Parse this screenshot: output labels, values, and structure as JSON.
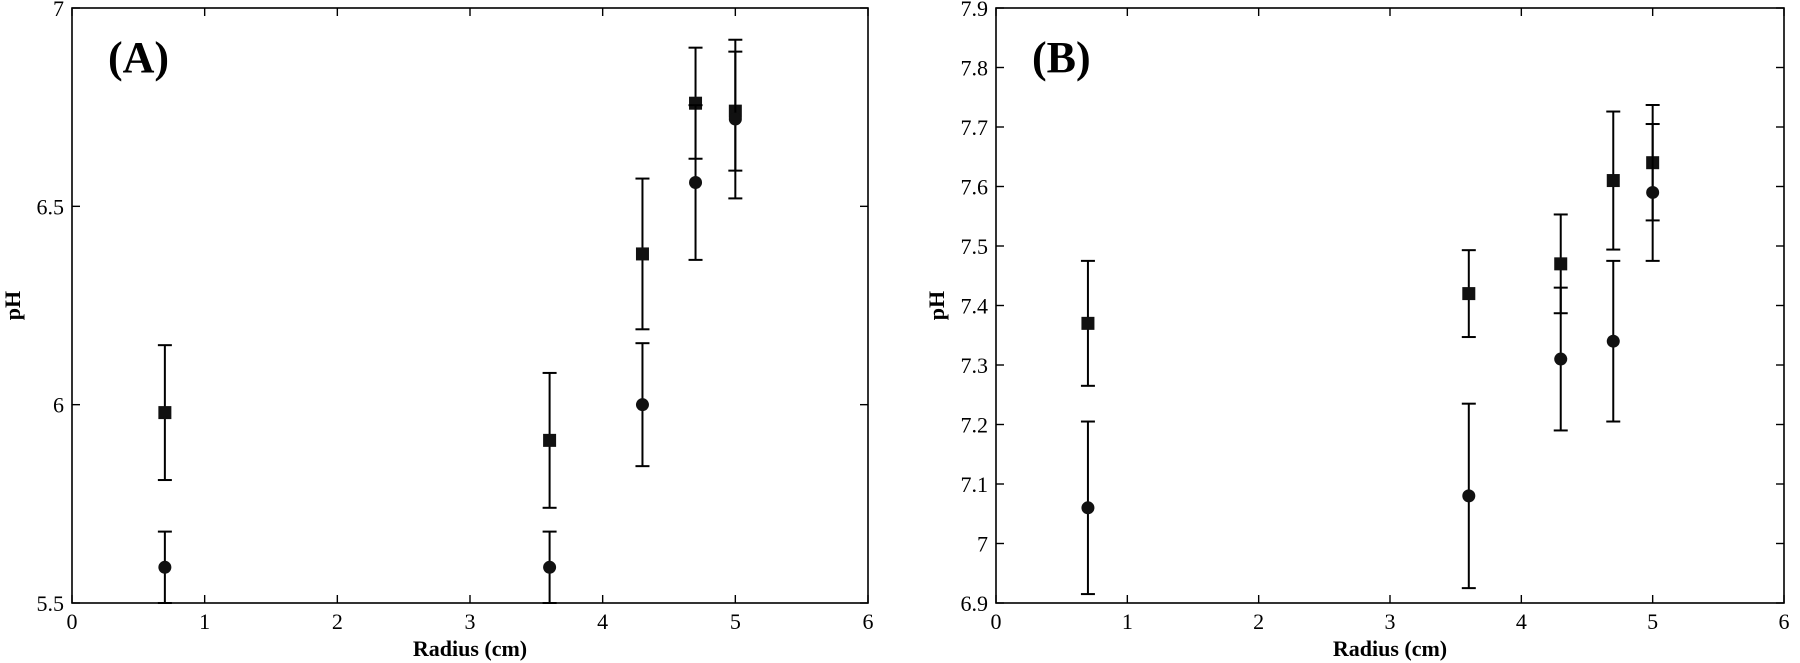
{
  "chart_data": [
    {
      "type": "scatter",
      "panel_label": "(A)",
      "xlabel": "Radius (cm)",
      "ylabel": "pH",
      "xlim": [
        0,
        6
      ],
      "ylim": [
        5.5,
        7
      ],
      "xticks": [
        0,
        1,
        2,
        3,
        4,
        5,
        6
      ],
      "yticks": [
        5.5,
        6,
        6.5,
        7
      ],
      "ytick_labels": [
        "5.5",
        "6",
        "6.5",
        "7"
      ],
      "grid": false,
      "series": [
        {
          "marker": "square",
          "points": [
            {
              "x": 0.7,
              "y": 5.98,
              "err": 0.17
            },
            {
              "x": 3.6,
              "y": 5.91,
              "err": 0.17
            },
            {
              "x": 4.3,
              "y": 6.38,
              "err": 0.19
            },
            {
              "x": 4.7,
              "y": 6.76,
              "err": 0.14
            },
            {
              "x": 5.0,
              "y": 6.74,
              "err": 0.15
            }
          ]
        },
        {
          "marker": "circle",
          "points": [
            {
              "x": 0.7,
              "y": 5.59,
              "err": 0.09
            },
            {
              "x": 3.6,
              "y": 5.59,
              "err": 0.09
            },
            {
              "x": 4.3,
              "y": 6.0,
              "err": 0.155
            },
            {
              "x": 4.7,
              "y": 6.56,
              "err": 0.195
            },
            {
              "x": 5.0,
              "y": 6.72,
              "err": 0.2
            }
          ]
        }
      ]
    },
    {
      "type": "scatter",
      "panel_label": "(B)",
      "xlabel": "Radius (cm)",
      "ylabel": "pH",
      "xlim": [
        0,
        6
      ],
      "ylim": [
        6.9,
        7.9
      ],
      "xticks": [
        0,
        1,
        2,
        3,
        4,
        5,
        6
      ],
      "yticks": [
        6.9,
        7.0,
        7.1,
        7.2,
        7.3,
        7.4,
        7.5,
        7.6,
        7.7,
        7.8,
        7.9
      ],
      "ytick_labels": [
        "6.9",
        "7",
        "7.1",
        "7.2",
        "7.3",
        "7.4",
        "7.5",
        "7.6",
        "7.7",
        "7.8",
        "7.9"
      ],
      "grid": false,
      "series": [
        {
          "marker": "square",
          "points": [
            {
              "x": 0.7,
              "y": 7.37,
              "err": 0.105
            },
            {
              "x": 3.6,
              "y": 7.42,
              "err": 0.073
            },
            {
              "x": 4.3,
              "y": 7.47,
              "err": 0.083
            },
            {
              "x": 4.7,
              "y": 7.61,
              "err": 0.116
            },
            {
              "x": 5.0,
              "y": 7.64,
              "err": 0.097
            }
          ]
        },
        {
          "marker": "circle",
          "points": [
            {
              "x": 0.7,
              "y": 7.06,
              "err": 0.145
            },
            {
              "x": 3.6,
              "y": 7.08,
              "err": 0.155
            },
            {
              "x": 4.3,
              "y": 7.31,
              "err": 0.12
            },
            {
              "x": 4.7,
              "y": 7.34,
              "err": 0.135
            },
            {
              "x": 5.0,
              "y": 7.59,
              "err": 0.115
            }
          ]
        }
      ]
    }
  ]
}
